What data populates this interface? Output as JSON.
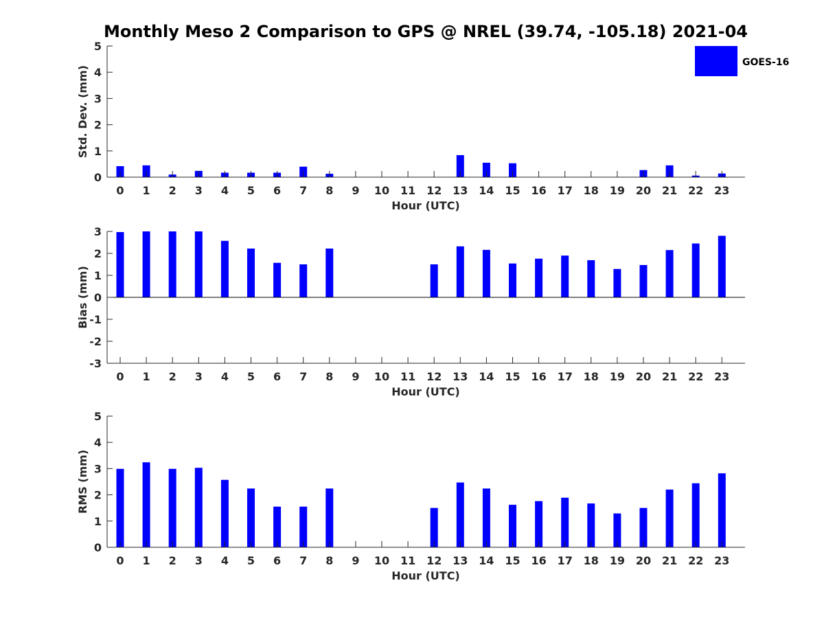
{
  "colors": {
    "bar": "#0000ff",
    "axis": "#262626",
    "background": "#ffffff"
  },
  "title": "Monthly Meso 2 Comparison to GPS @ NREL (39.74, -105.18) 2021-04",
  "legend": {
    "label": "GOES-16",
    "placement": "top-right"
  },
  "chart_data": [
    {
      "type": "bar",
      "ylabel": "Std. Dev. (mm)",
      "xlabel": "Hour (UTC)",
      "ylim": [
        0,
        5
      ],
      "yticks": [
        0,
        1,
        2,
        3,
        4,
        5
      ],
      "categories": [
        "0",
        "1",
        "2",
        "3",
        "4",
        "5",
        "6",
        "7",
        "8",
        "9",
        "10",
        "11",
        "12",
        "13",
        "14",
        "15",
        "16",
        "17",
        "18",
        "19",
        "20",
        "21",
        "22",
        "23"
      ],
      "series": [
        {
          "name": "GOES-16",
          "values": [
            0.42,
            0.45,
            0.1,
            0.24,
            0.17,
            0.17,
            0.17,
            0.4,
            0.13,
            null,
            null,
            null,
            null,
            0.84,
            0.55,
            0.53,
            null,
            null,
            null,
            null,
            0.27,
            0.45,
            0.06,
            0.14
          ]
        }
      ]
    },
    {
      "type": "bar",
      "ylabel": "Bias (mm)",
      "xlabel": "Hour (UTC)",
      "ylim": [
        -3,
        3
      ],
      "yticks": [
        -3,
        -2,
        -1,
        0,
        1,
        2,
        3
      ],
      "categories": [
        "0",
        "1",
        "2",
        "3",
        "4",
        "5",
        "6",
        "7",
        "8",
        "9",
        "10",
        "11",
        "12",
        "13",
        "14",
        "15",
        "16",
        "17",
        "18",
        "19",
        "20",
        "21",
        "22",
        "23"
      ],
      "series": [
        {
          "name": "GOES-16",
          "values": [
            2.97,
            3.0,
            3.0,
            3.0,
            2.57,
            2.22,
            1.57,
            1.5,
            2.22,
            null,
            null,
            null,
            1.5,
            2.32,
            2.16,
            1.54,
            1.76,
            1.9,
            1.69,
            1.29,
            1.47,
            2.15,
            2.45,
            2.8
          ]
        }
      ]
    },
    {
      "type": "bar",
      "ylabel": "RMS (mm)",
      "xlabel": "Hour (UTC)",
      "ylim": [
        0,
        5
      ],
      "yticks": [
        0,
        1,
        2,
        3,
        4,
        5
      ],
      "categories": [
        "0",
        "1",
        "2",
        "3",
        "4",
        "5",
        "6",
        "7",
        "8",
        "9",
        "10",
        "11",
        "12",
        "13",
        "14",
        "15",
        "16",
        "17",
        "18",
        "19",
        "20",
        "21",
        "22",
        "23"
      ],
      "series": [
        {
          "name": "GOES-16",
          "values": [
            2.99,
            3.24,
            2.99,
            3.03,
            2.57,
            2.24,
            1.55,
            1.55,
            2.24,
            null,
            null,
            null,
            1.5,
            2.47,
            2.24,
            1.62,
            1.76,
            1.89,
            1.67,
            1.29,
            1.5,
            2.2,
            2.44,
            2.82
          ]
        }
      ]
    }
  ]
}
